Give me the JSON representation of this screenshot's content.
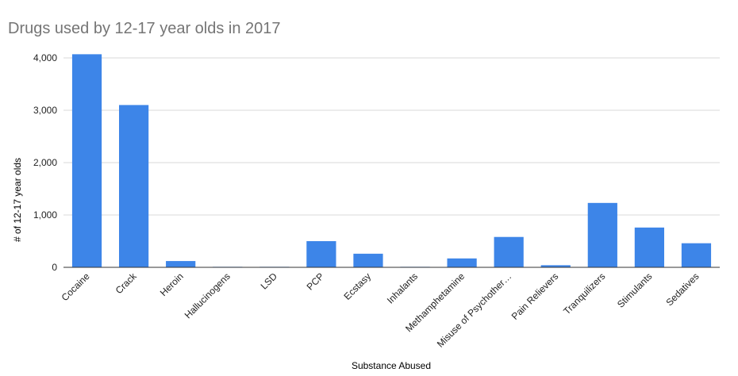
{
  "chart_data": {
    "type": "bar",
    "title": "Drugs used by 12-17 year olds in 2017",
    "xlabel": "Substance Abused",
    "ylabel": "# of 12-17 year olds",
    "categories": [
      "Cocaine",
      "Crack",
      "Heroin",
      "Hallucinogens",
      "LSD",
      "PCP",
      "Ecstasy",
      "Inhalants",
      "Methamphetamine",
      "Misuse of Psychother…",
      "Pain Relievers",
      "Tranquilizers",
      "Stimulants",
      "Sedatives"
    ],
    "values": [
      4070,
      3100,
      120,
      10,
      10,
      500,
      260,
      10,
      170,
      580,
      40,
      1230,
      760,
      460
    ],
    "ylim": [
      0,
      4000
    ],
    "yticks": [
      0,
      1000,
      2000,
      3000,
      4000
    ],
    "ytick_labels": [
      "0",
      "1,000",
      "2,000",
      "3,000",
      "4,000"
    ],
    "grid": true,
    "legend": "none",
    "colors": {
      "bar": "#3d85e8",
      "grid": "#d9d9d9",
      "axis": "#333333",
      "title": "#757575"
    }
  }
}
